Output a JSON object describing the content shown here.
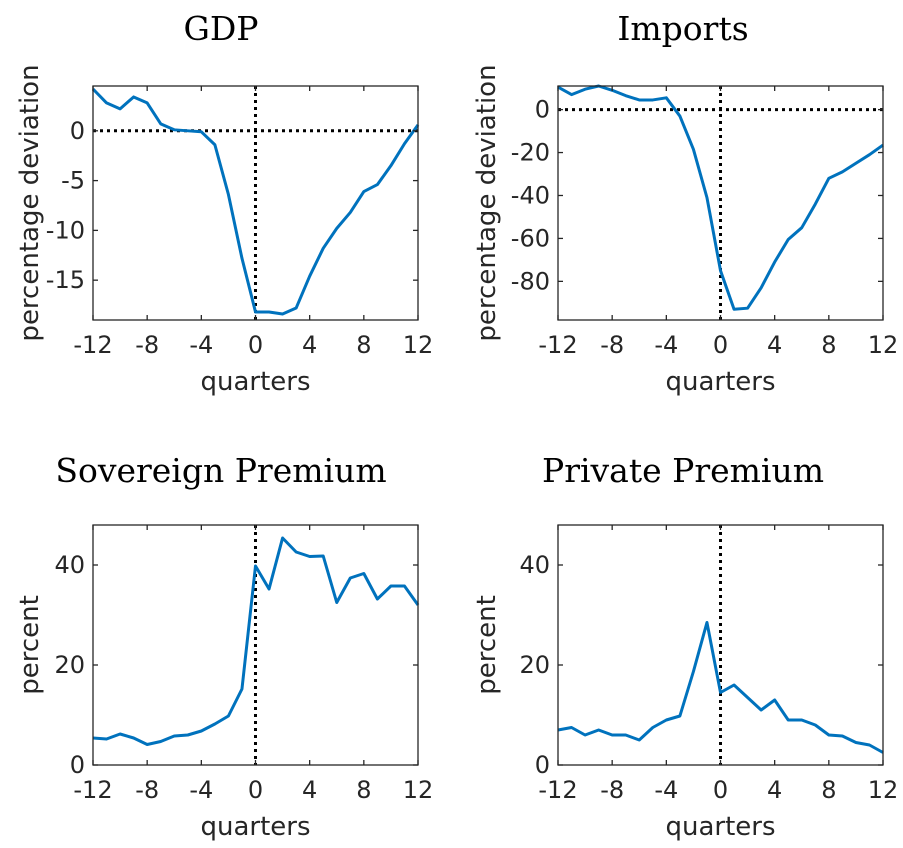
{
  "chart_data": [
    {
      "type": "line",
      "title": "GDP",
      "xlabel": "quarters",
      "ylabel": "percentage deviation",
      "xlim": [
        -12,
        12
      ],
      "ylim": [
        -19,
        4.5
      ],
      "xticks": [
        -12,
        -8,
        -4,
        0,
        4,
        8,
        12
      ],
      "yticks": [
        -15,
        -10,
        -5,
        0
      ],
      "yticklabels": [
        "-15",
        "-10",
        "-5",
        "0"
      ],
      "zero_lines": {
        "horizontal": 0,
        "vertical": 0
      },
      "color": "#0072BD",
      "x": [
        -12,
        -11,
        -10,
        -9,
        -8,
        -7,
        -6,
        -5,
        -4,
        -3,
        -2,
        -1,
        0,
        1,
        2,
        3,
        4,
        5,
        6,
        7,
        8,
        9,
        10,
        11,
        12
      ],
      "values": [
        4.2,
        2.8,
        2.2,
        3.4,
        2.8,
        0.7,
        0.1,
        0.0,
        -0.1,
        -1.4,
        -6.4,
        -12.8,
        -18.2,
        -18.2,
        -18.4,
        -17.8,
        -14.6,
        -11.8,
        -9.8,
        -8.2,
        -6.1,
        -5.4,
        -3.5,
        -1.3,
        0.6
      ],
      "grid": false,
      "legend": "none"
    },
    {
      "type": "line",
      "title": "Imports",
      "xlabel": "quarters",
      "ylabel": "percentage deviation",
      "xlim": [
        -12,
        12
      ],
      "ylim": [
        -98,
        11
      ],
      "xticks": [
        -12,
        -8,
        -4,
        0,
        4,
        8,
        12
      ],
      "yticks": [
        -80,
        -60,
        -40,
        -20,
        0
      ],
      "yticklabels": [
        "-80",
        "-60",
        "-40",
        "-20",
        "0"
      ],
      "zero_lines": {
        "horizontal": 0,
        "vertical": 0
      },
      "color": "#0072BD",
      "x": [
        -12,
        -11,
        -10,
        -9,
        -8,
        -7,
        -6,
        -5,
        -4,
        -3,
        -2,
        -1,
        0,
        1,
        2,
        3,
        4,
        5,
        6,
        7,
        8,
        9,
        10,
        11,
        12
      ],
      "values": [
        10.5,
        7.0,
        9.5,
        11.0,
        9.0,
        6.5,
        4.5,
        4.5,
        5.5,
        -3.0,
        -18.5,
        -41.0,
        -75.0,
        -93.0,
        -92.5,
        -83.0,
        -71.0,
        -60.5,
        -55.0,
        -44.0,
        -32.0,
        -29.0,
        -25.0,
        -21.0,
        -16.5
      ],
      "grid": false,
      "legend": "none"
    },
    {
      "type": "line",
      "title": "Sovereign Premium",
      "xlabel": "quarters",
      "ylabel": "percent",
      "xlim": [
        -12,
        12
      ],
      "ylim": [
        0,
        48
      ],
      "xticks": [
        -12,
        -8,
        -4,
        0,
        4,
        8,
        12
      ],
      "yticks": [
        0,
        20,
        40
      ],
      "yticklabels": [
        "0",
        "20",
        "40"
      ],
      "zero_lines": {
        "vertical": 0
      },
      "color": "#0072BD",
      "x": [
        -12,
        -11,
        -10,
        -9,
        -8,
        -7,
        -6,
        -5,
        -4,
        -3,
        -2,
        -1,
        0,
        1,
        2,
        3,
        4,
        5,
        6,
        7,
        8,
        9,
        10,
        11,
        12
      ],
      "values": [
        5.4,
        5.2,
        6.2,
        5.4,
        4.1,
        4.7,
        5.8,
        6.0,
        6.8,
        8.2,
        9.8,
        15.2,
        39.8,
        35.2,
        45.4,
        42.6,
        41.7,
        41.8,
        32.5,
        37.4,
        38.3,
        33.2,
        35.8,
        35.8,
        32.0
      ],
      "grid": false,
      "legend": "none"
    },
    {
      "type": "line",
      "title": "Private Premium",
      "xlabel": "quarters",
      "ylabel": "percent",
      "xlim": [
        -12,
        12
      ],
      "ylim": [
        0,
        48
      ],
      "xticks": [
        -12,
        -8,
        -4,
        0,
        4,
        8,
        12
      ],
      "yticks": [
        0,
        20,
        40
      ],
      "yticklabels": [
        "0",
        "20",
        "40"
      ],
      "zero_lines": {
        "vertical": 0
      },
      "color": "#0072BD",
      "x": [
        -12,
        -11,
        -10,
        -9,
        -8,
        -7,
        -6,
        -5,
        -4,
        -3,
        -2,
        -1,
        0,
        1,
        2,
        3,
        4,
        5,
        6,
        7,
        8,
        9,
        10,
        11,
        12
      ],
      "values": [
        7.0,
        7.5,
        6.0,
        7.0,
        6.0,
        6.0,
        5.0,
        7.5,
        9.0,
        9.8,
        18.7,
        28.5,
        14.5,
        16.0,
        13.5,
        11.0,
        13.0,
        9.0,
        9.0,
        8.0,
        6.0,
        5.8,
        4.5,
        4.0,
        2.5
      ],
      "grid": false,
      "legend": "none"
    }
  ]
}
